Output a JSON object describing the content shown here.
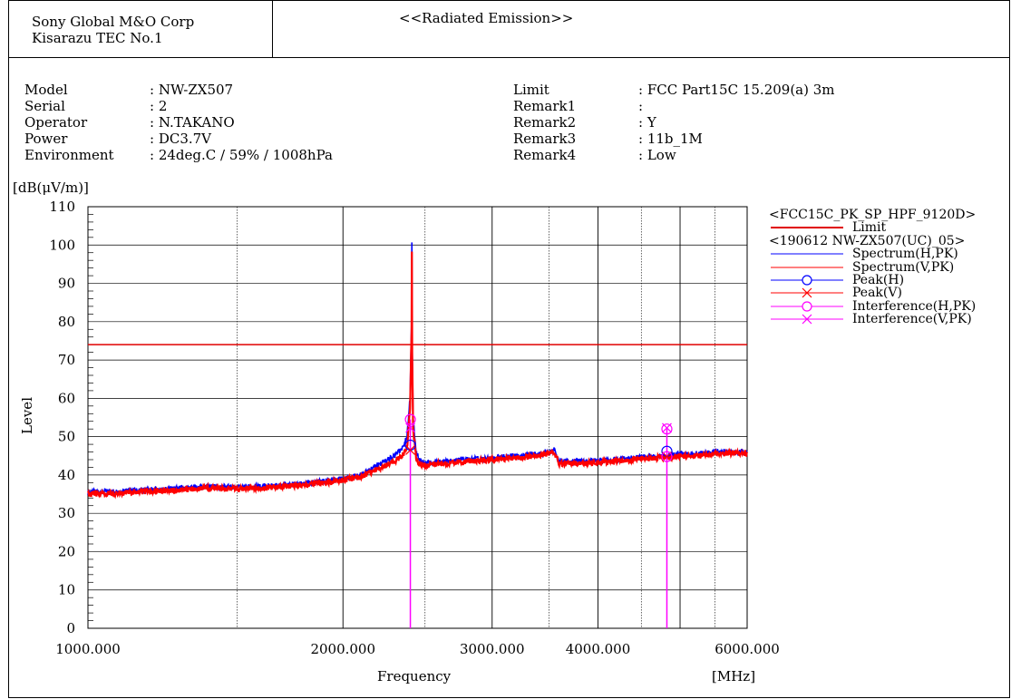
{
  "header": {
    "company_line1": "Sony Global M&O Corp",
    "company_line2": "Kisarazu TEC No.1",
    "title": "<<Radiated Emission>>"
  },
  "info_left": [
    {
      "label": "Model",
      "value": ": NW-ZX507"
    },
    {
      "label": "Serial",
      "value": ": 2"
    },
    {
      "label": "Operator",
      "value": ": N.TAKANO"
    },
    {
      "label": "Power",
      "value": ": DC3.7V"
    },
    {
      "label": "Environment",
      "value": ": 24deg.C / 59% / 1008hPa"
    }
  ],
  "info_right": [
    {
      "label": "Limit",
      "value": ": FCC Part15C 15.209(a) 3m"
    },
    {
      "label": "Remark1",
      "value": ":"
    },
    {
      "label": "Remark2",
      "value": ": Y"
    },
    {
      "label": "Remark3",
      "value": ": 11b_1M"
    },
    {
      "label": "Remark4",
      "value": ": Low"
    }
  ],
  "legend": {
    "group1": "<FCC15C_PK_SP_HPF_9120D>",
    "group2": "<190612 NW-ZX507(UC)_05>",
    "items": [
      {
        "name": "Limit",
        "color": "#e00000",
        "marker": "none",
        "group": 1
      },
      {
        "name": "Spectrum(H,PK)",
        "color": "#0000ff",
        "marker": "none",
        "group": 2
      },
      {
        "name": "Spectrum(V,PK)",
        "color": "#ff0000",
        "marker": "none",
        "group": 2
      },
      {
        "name": "Peak(H)",
        "color": "#0000ff",
        "marker": "circle",
        "group": 2
      },
      {
        "name": "Peak(V)",
        "color": "#ff0000",
        "marker": "cross",
        "group": 2
      },
      {
        "name": "Interference(H,PK)",
        "color": "#ff00ff",
        "marker": "circle",
        "group": 2
      },
      {
        "name": "Interference(V,PK)",
        "color": "#ff00ff",
        "marker": "cross",
        "group": 2
      }
    ]
  },
  "chart_data": {
    "type": "line",
    "title": "<<Radiated Emission>>",
    "xlabel": "Frequency",
    "xunit": "[MHz]",
    "ylabel": "Level",
    "yunit": "[dB(μV/m)]",
    "xscale": "log",
    "xlim": [
      1000,
      6000
    ],
    "ylim": [
      0,
      110
    ],
    "yticks": [
      0,
      10,
      20,
      30,
      40,
      50,
      60,
      70,
      80,
      90,
      100,
      110
    ],
    "xtick_labels": [
      {
        "value": 1000,
        "label": "1000.000"
      },
      {
        "value": 2000,
        "label": "2000.000"
      },
      {
        "value": 3000,
        "label": "3000.000"
      },
      {
        "value": 4000,
        "label": "4000.000"
      },
      {
        "value": 6000,
        "label": "6000.000"
      }
    ],
    "x_gridlines": [
      1500,
      2000,
      2500,
      3000,
      3500,
      4000,
      4500,
      5000,
      5500,
      6000
    ],
    "limit_line": {
      "name": "Limit",
      "value": 74,
      "color": "#e00000"
    },
    "spectrum": {
      "x": [
        1000,
        1100,
        1200,
        1300,
        1400,
        1500,
        1600,
        1700,
        1800,
        1900,
        2000,
        2100,
        2200,
        2300,
        2350,
        2380,
        2400,
        2410,
        2412,
        2414,
        2420,
        2440,
        2460,
        2500,
        2600,
        2800,
        3000,
        3200,
        3400,
        3500,
        3550,
        3600,
        3800,
        4000,
        4200,
        4400,
        4600,
        4800,
        5000,
        5200,
        5400,
        5500,
        5600,
        5800,
        6000
      ],
      "series": [
        {
          "name": "Spectrum(H,PK)",
          "color": "#0000ff",
          "values": [
            35.5,
            35.8,
            36.2,
            36.6,
            37.0,
            36.8,
            37.0,
            37.3,
            37.8,
            38.4,
            39.0,
            40.0,
            42.5,
            45.0,
            47.0,
            50.0,
            60.0,
            80.0,
            101.0,
            75.0,
            55.0,
            46.0,
            44.0,
            43.0,
            43.5,
            44.0,
            44.5,
            45.0,
            45.5,
            46.0,
            46.5,
            43.5,
            43.5,
            43.8,
            44.0,
            44.5,
            44.8,
            45.0,
            45.5,
            45.5,
            45.8,
            46.0,
            46.2,
            46.0,
            46.0
          ]
        },
        {
          "name": "Spectrum(V,PK)",
          "color": "#ff0000",
          "values": [
            35.0,
            35.3,
            35.8,
            36.2,
            36.6,
            36.3,
            36.6,
            37.0,
            37.5,
            38.0,
            38.6,
            39.5,
            41.5,
            43.5,
            45.0,
            47.0,
            57.0,
            78.0,
            98.5,
            72.0,
            52.0,
            44.5,
            43.0,
            42.5,
            43.0,
            43.5,
            44.0,
            44.5,
            45.0,
            45.5,
            46.0,
            43.0,
            43.0,
            43.3,
            43.6,
            44.0,
            44.3,
            44.6,
            45.0,
            45.0,
            45.3,
            45.5,
            45.8,
            45.6,
            45.6
          ]
        }
      ]
    },
    "peaks": [
      {
        "series": "Peak(H)",
        "x": 2402,
        "y": 47.8,
        "color": "#0000ff",
        "marker": "circle"
      },
      {
        "series": "Peak(V)",
        "x": 2402,
        "y": 46.5,
        "color": "#ff0000",
        "marker": "cross"
      },
      {
        "series": "Peak(H)",
        "x": 4824,
        "y": 46.2,
        "color": "#0000ff",
        "marker": "circle"
      },
      {
        "series": "Peak(V)",
        "x": 4824,
        "y": 44.8,
        "color": "#ff0000",
        "marker": "cross"
      },
      {
        "series": "Interference(H,PK)",
        "x": 2402,
        "y": 54.5,
        "color": "#ff00ff",
        "marker": "circle"
      },
      {
        "series": "Interference(V,PK)",
        "x": 2402,
        "y": 52.3,
        "color": "#ff00ff",
        "marker": "cross"
      },
      {
        "series": "Interference(H,PK)",
        "x": 4824,
        "y": 52.0,
        "color": "#ff00ff",
        "marker": "circle"
      },
      {
        "series": "Interference(V,PK)",
        "x": 4824,
        "y": 52.3,
        "color": "#ff00ff",
        "marker": "cross"
      },
      {
        "series": "Interference(H,PK)",
        "x": 4824,
        "y": 44.8,
        "color": "#ff00ff",
        "marker": "circle"
      }
    ],
    "vertical_markers": [
      {
        "x": 2402,
        "y_top": 54.5,
        "color": "#ff00ff"
      },
      {
        "x": 4824,
        "y_top": 52.0,
        "color": "#ff00ff"
      }
    ]
  }
}
